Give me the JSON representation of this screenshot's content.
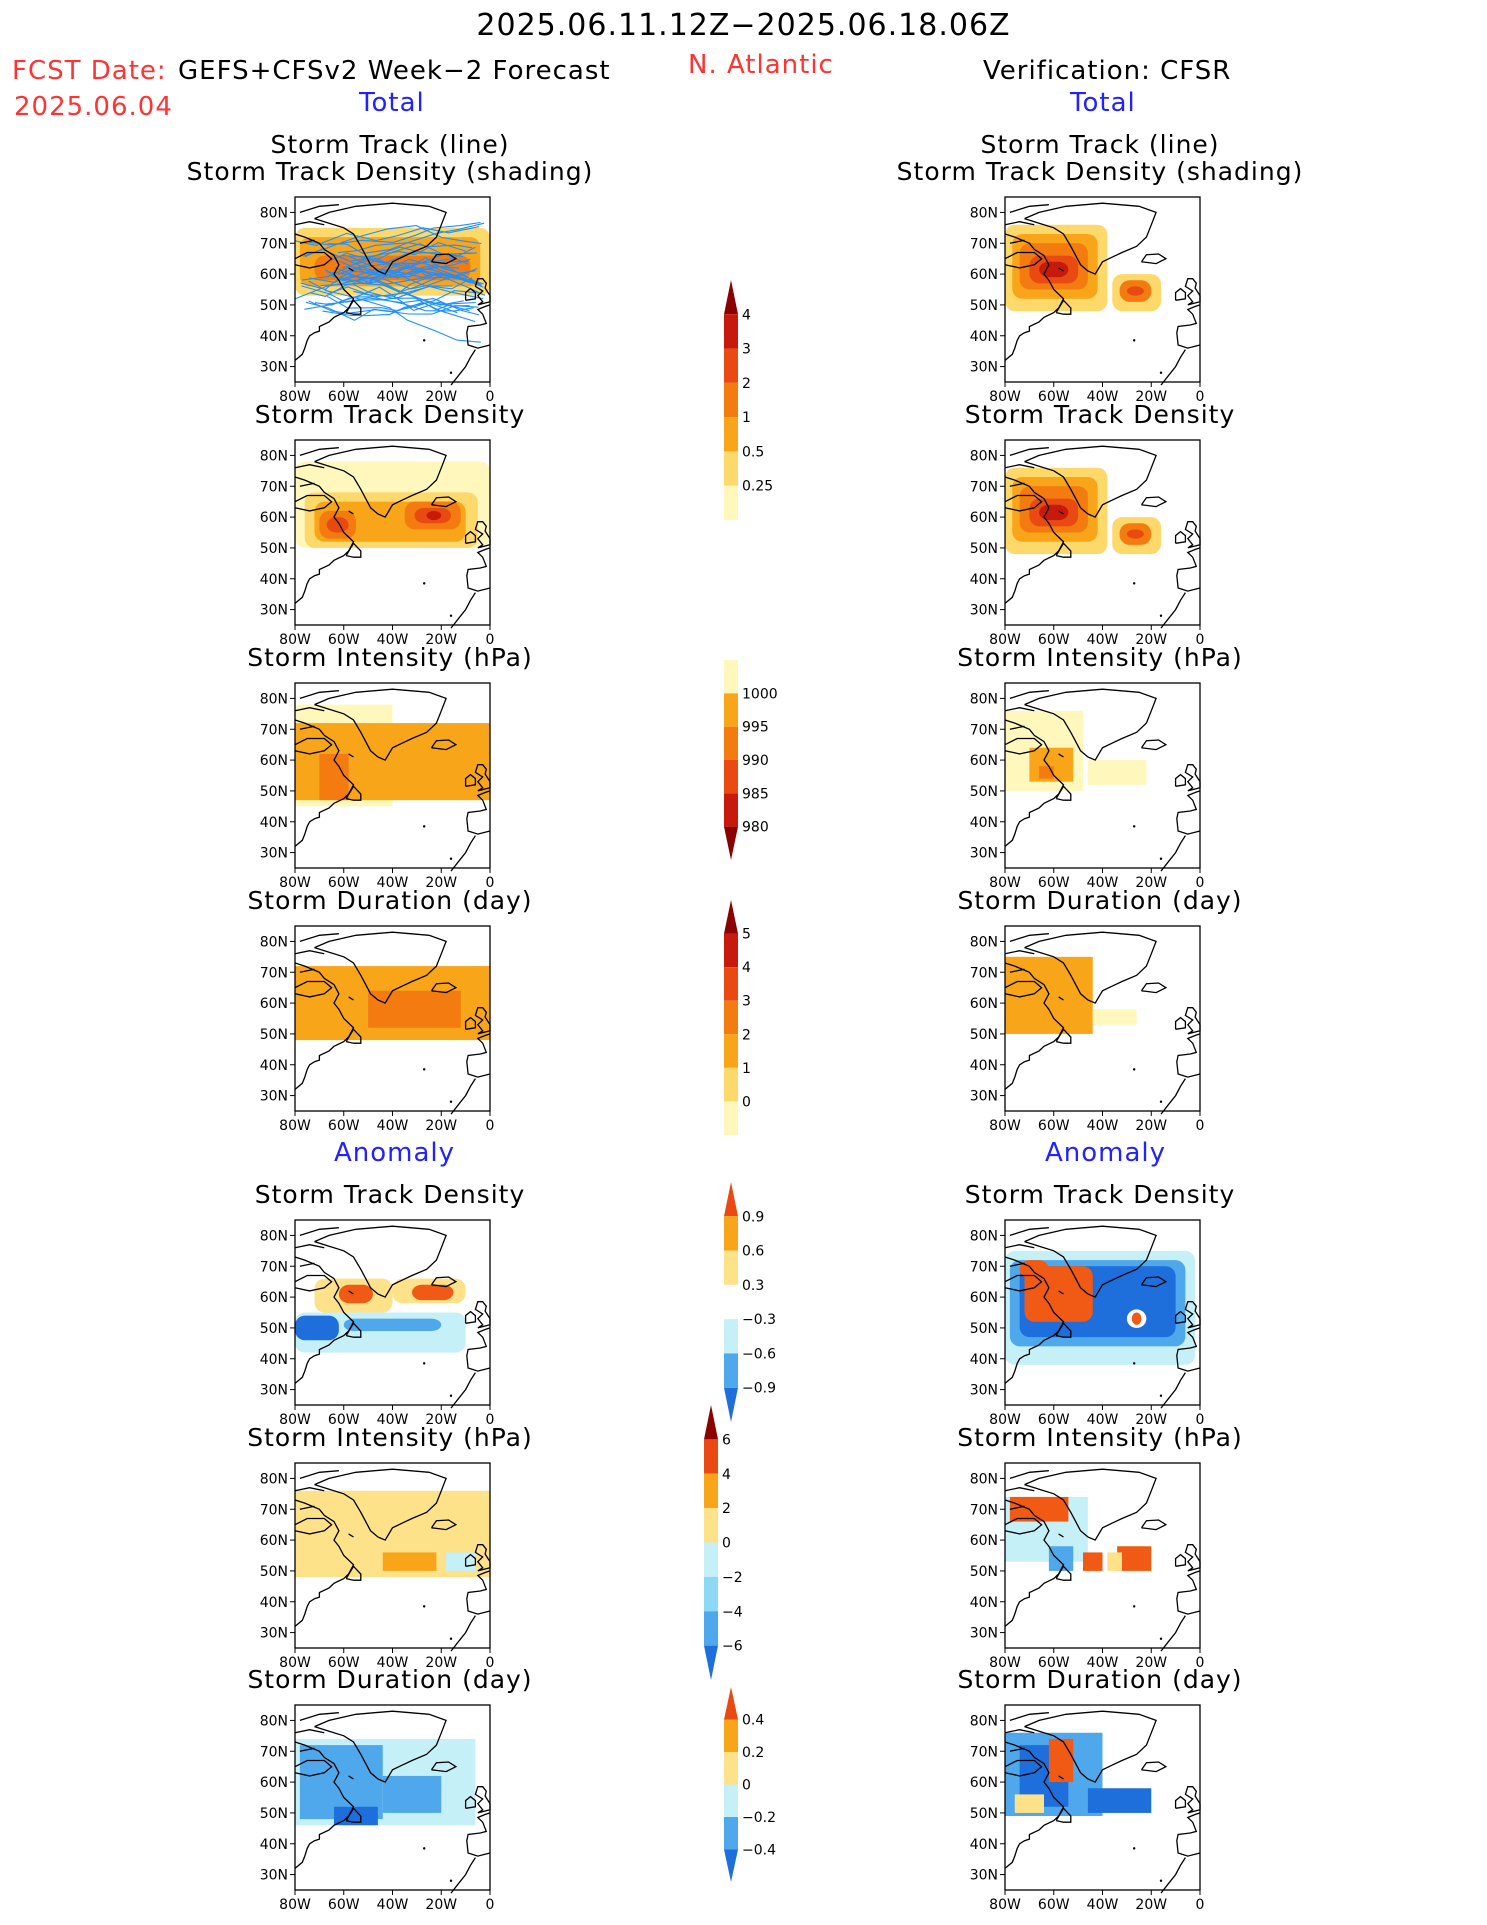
{
  "header": {
    "title": "2025.06.11.12Z−2025.06.18.06Z",
    "region": "N. Atlantic",
    "fcst_label": "FCST Date:",
    "fcst_model": "GEFS+CFSv2 Week−2 Forecast",
    "fcst_date": "2025.06.04",
    "verification": "Verification: CFSR",
    "left_section_total": "Total",
    "right_section_total": "Total",
    "left_section_anomaly": "Anomaly",
    "right_section_anomaly": "Anomaly"
  },
  "panel_titles": {
    "track_line": "Storm Track (line)",
    "track_density_shading": "Storm Track Density (shading)",
    "track_density": "Storm Track Density",
    "intensity": "Storm Intensity (hPa)",
    "duration": "Storm Duration (day)"
  },
  "axes": {
    "lat_labels": [
      "80N",
      "70N",
      "60N",
      "50N",
      "40N",
      "30N"
    ],
    "lon_labels": [
      "80W",
      "60W",
      "40W",
      "20W",
      "0"
    ]
  },
  "colorbars": {
    "density_total": [
      "4",
      "3",
      "2",
      "1",
      "0.5",
      "0.25"
    ],
    "intensity_total": [
      "1000",
      "995",
      "990",
      "985",
      "980"
    ],
    "duration_total": [
      "5",
      "4",
      "3",
      "2",
      "1",
      "0"
    ],
    "density_anomaly": [
      "0.9",
      "0.6",
      "0.3",
      "−0.3",
      "−0.6",
      "−0.9"
    ],
    "intensity_anomaly": [
      "6",
      "4",
      "2",
      "0",
      "−2",
      "−4",
      "−6"
    ],
    "duration_anomaly": [
      "0.4",
      "0.2",
      "0",
      "−0.2",
      "−0.4"
    ]
  },
  "chart_data": [
    {
      "type": "heatmap",
      "panel": "forecast",
      "section": "Total",
      "field": "Storm Track (line) / Storm Track Density (shading)",
      "region": "N. Atlantic",
      "xlim": [
        -80,
        0
      ],
      "ylim": [
        25,
        85
      ],
      "scale": "density_total"
    },
    {
      "type": "heatmap",
      "panel": "verification",
      "section": "Total",
      "field": "Storm Track (line) / Storm Track Density (shading)",
      "xlim": [
        -80,
        0
      ],
      "ylim": [
        25,
        85
      ],
      "scale": "density_total"
    },
    {
      "type": "heatmap",
      "panel": "forecast",
      "section": "Total",
      "field": "Storm Track Density",
      "xlim": [
        -80,
        0
      ],
      "ylim": [
        25,
        85
      ],
      "scale": "density_total"
    },
    {
      "type": "heatmap",
      "panel": "verification",
      "section": "Total",
      "field": "Storm Track Density",
      "xlim": [
        -80,
        0
      ],
      "ylim": [
        25,
        85
      ],
      "scale": "density_total"
    },
    {
      "type": "heatmap",
      "panel": "forecast",
      "section": "Total",
      "field": "Storm Intensity (hPa)",
      "xlim": [
        -80,
        0
      ],
      "ylim": [
        25,
        85
      ],
      "scale": "intensity_total"
    },
    {
      "type": "heatmap",
      "panel": "verification",
      "section": "Total",
      "field": "Storm Intensity (hPa)",
      "xlim": [
        -80,
        0
      ],
      "ylim": [
        25,
        85
      ],
      "scale": "intensity_total"
    },
    {
      "type": "heatmap",
      "panel": "forecast",
      "section": "Total",
      "field": "Storm Duration (day)",
      "xlim": [
        -80,
        0
      ],
      "ylim": [
        25,
        85
      ],
      "scale": "duration_total"
    },
    {
      "type": "heatmap",
      "panel": "verification",
      "section": "Total",
      "field": "Storm Duration (day)",
      "xlim": [
        -80,
        0
      ],
      "ylim": [
        25,
        85
      ],
      "scale": "duration_total"
    },
    {
      "type": "heatmap",
      "panel": "forecast",
      "section": "Anomaly",
      "field": "Storm Track Density",
      "xlim": [
        -80,
        0
      ],
      "ylim": [
        25,
        85
      ],
      "scale": "density_anomaly"
    },
    {
      "type": "heatmap",
      "panel": "verification",
      "section": "Anomaly",
      "field": "Storm Track Density",
      "xlim": [
        -80,
        0
      ],
      "ylim": [
        25,
        85
      ],
      "scale": "density_anomaly"
    },
    {
      "type": "heatmap",
      "panel": "forecast",
      "section": "Anomaly",
      "field": "Storm Intensity (hPa)",
      "xlim": [
        -80,
        0
      ],
      "ylim": [
        25,
        85
      ],
      "scale": "intensity_anomaly"
    },
    {
      "type": "heatmap",
      "panel": "verification",
      "section": "Anomaly",
      "field": "Storm Intensity (hPa)",
      "xlim": [
        -80,
        0
      ],
      "ylim": [
        25,
        85
      ],
      "scale": "intensity_anomaly"
    },
    {
      "type": "heatmap",
      "panel": "forecast",
      "section": "Anomaly",
      "field": "Storm Duration (day)",
      "xlim": [
        -80,
        0
      ],
      "ylim": [
        25,
        85
      ],
      "scale": "duration_anomaly"
    },
    {
      "type": "heatmap",
      "panel": "verification",
      "section": "Anomaly",
      "field": "Storm Duration (day)",
      "xlim": [
        -80,
        0
      ],
      "ylim": [
        25,
        85
      ],
      "scale": "duration_anomaly"
    }
  ],
  "colors": {
    "warm": [
      "#fff7bc",
      "#fdd86a",
      "#f9a51a",
      "#f47b10",
      "#e84a12",
      "#c71a0c",
      "#8b0000"
    ],
    "cool": [
      "#c6f0f7",
      "#8cd8f5",
      "#50a8ec",
      "#1e6fdc"
    ],
    "anomaly_warm": [
      "#fde28a",
      "#f9a51a",
      "#f05a14"
    ],
    "track_line": "#1e90ff",
    "coast": "#000000",
    "accent_red": "#ff3333",
    "accent_blue": "#2222ff"
  }
}
